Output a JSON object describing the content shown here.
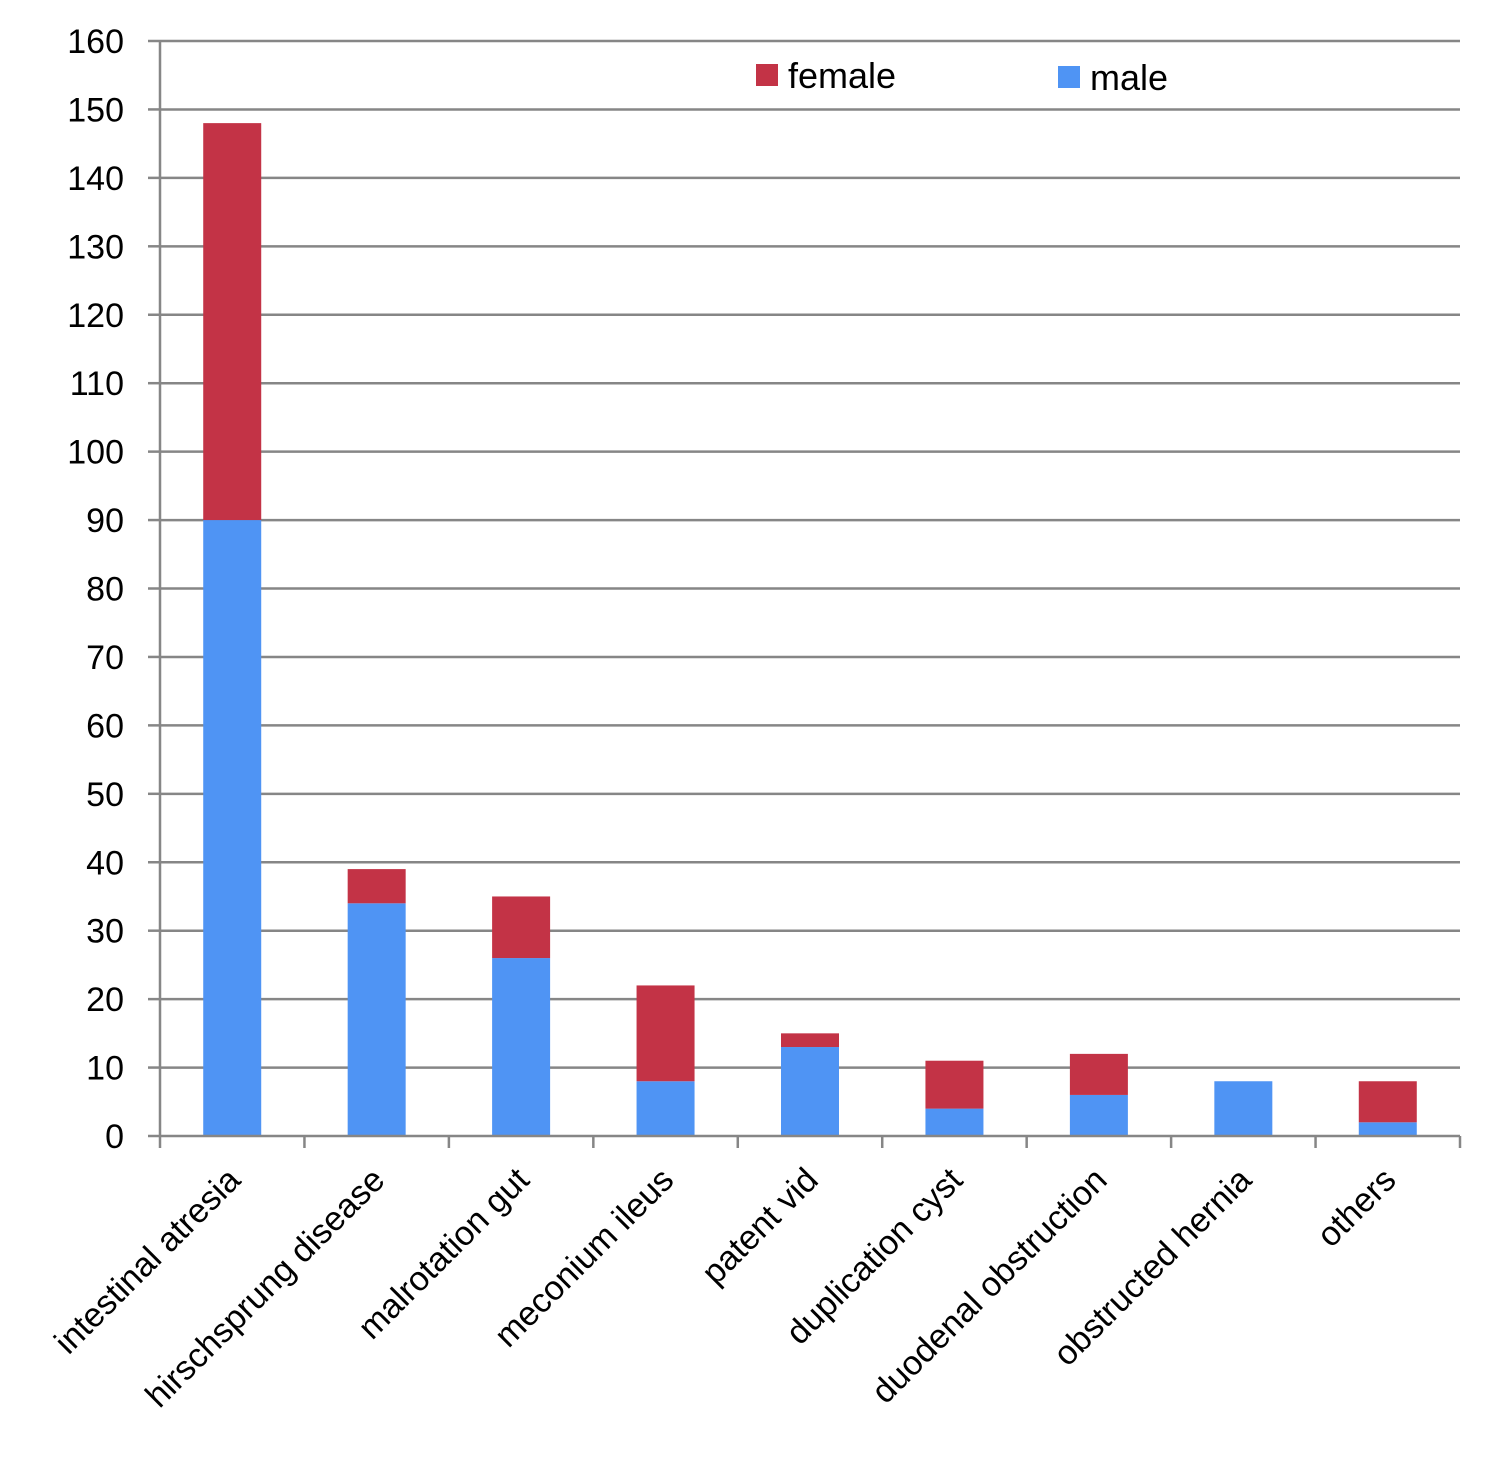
{
  "chart_data": {
    "type": "bar",
    "stacked": true,
    "title": "",
    "xlabel": "",
    "ylabel": "",
    "categories": [
      "intestinal atresia",
      "hirschsprung disease",
      "malrotation gut",
      "meconium ileus",
      "patent vid",
      "duplication cyst",
      "duodenal obstruction",
      "obstructed hernia",
      "others"
    ],
    "series": [
      {
        "name": "male",
        "color": "#4F94F4",
        "values": [
          90,
          34,
          26,
          8,
          13,
          4,
          6,
          8,
          2
        ]
      },
      {
        "name": "female",
        "color": "#C33346",
        "values": [
          58,
          5,
          9,
          14,
          2,
          7,
          6,
          0,
          6
        ]
      }
    ],
    "ylim": [
      0,
      160
    ],
    "y_ticks": [
      "0",
      "10",
      "20",
      "30",
      "40",
      "50",
      "60",
      "70",
      "80",
      "90",
      "100",
      "110",
      "120",
      "130",
      "140",
      "150",
      "160"
    ],
    "grid": true,
    "legend": {
      "position": "top-right",
      "entries": [
        "female",
        "male"
      ]
    }
  }
}
